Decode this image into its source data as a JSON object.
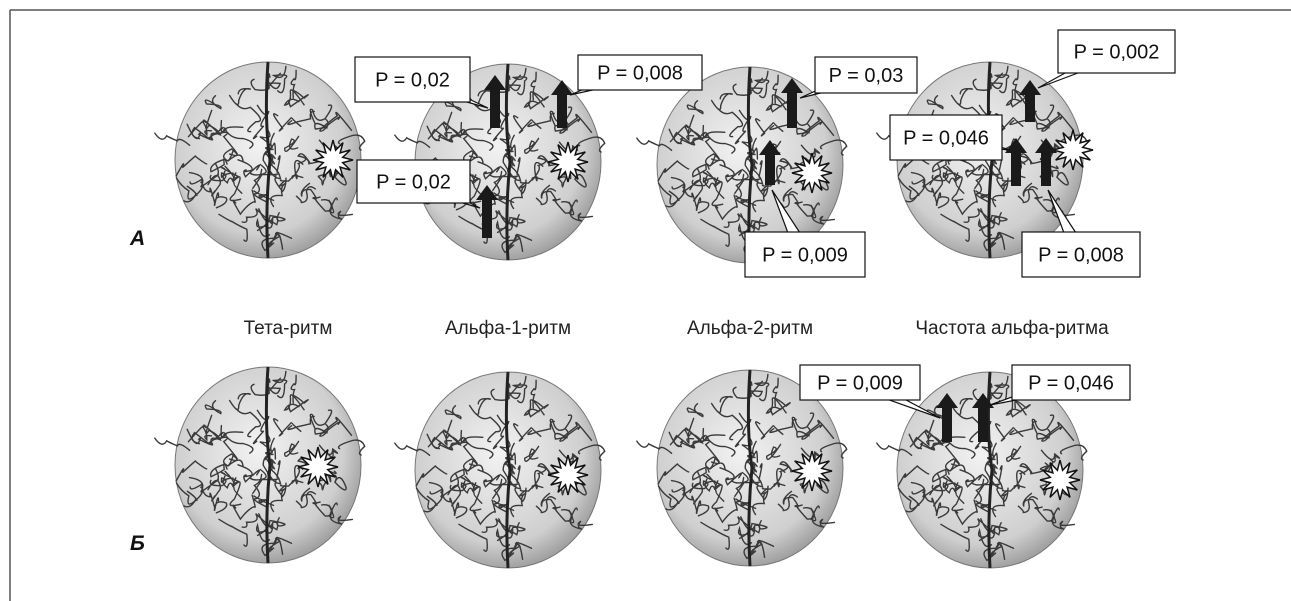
{
  "panels": [
    {
      "label": "А",
      "callouts": [
        "P = 0,02",
        "P = 0,008",
        "P = 0,02",
        "P = 0,03",
        "P = 0,009",
        "P = 0,002",
        "P = 0,046",
        "P = 0,008"
      ]
    },
    {
      "label": "Б",
      "callouts": [
        "P = 0,009",
        "P = 0,046"
      ]
    }
  ],
  "columns": [
    "Тета-ритм",
    "Альфа-1-ритм",
    "Альфа-2-ритм",
    "Частота альфа-ритма"
  ]
}
